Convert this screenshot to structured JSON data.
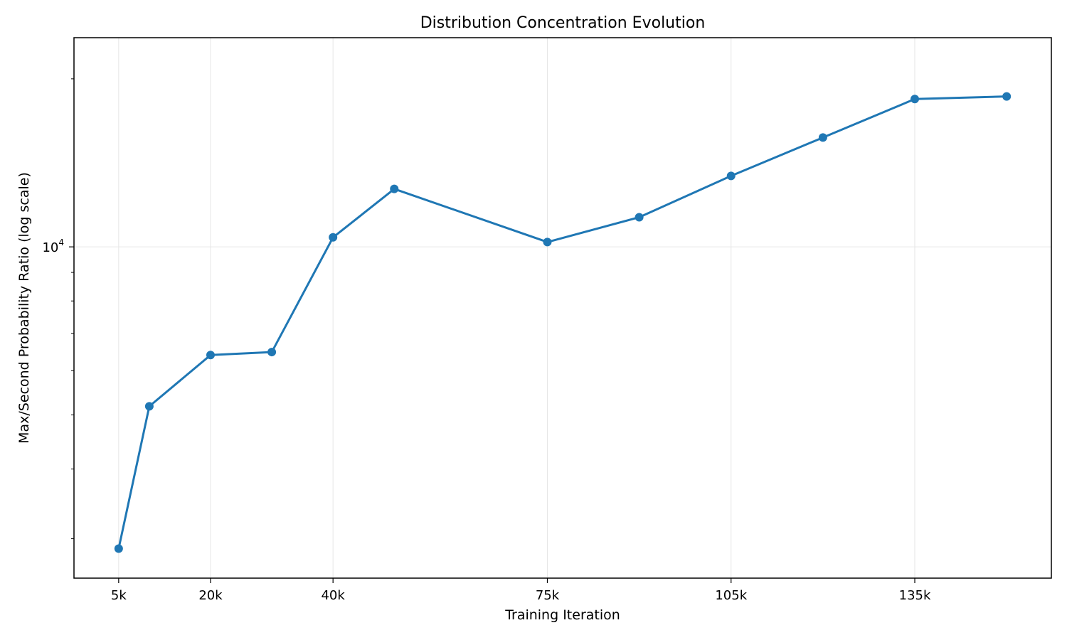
{
  "chart_data": {
    "type": "line",
    "title": "Distribution Concentration Evolution",
    "xlabel": "Training Iteration",
    "ylabel": "Max/Second Probability Ratio (log scale)",
    "yscale": "log",
    "grid": true,
    "x_ticks": [
      {
        "value": 5000,
        "label": "5k"
      },
      {
        "value": 20000,
        "label": "20k"
      },
      {
        "value": 40000,
        "label": "40k"
      },
      {
        "value": 75000,
        "label": "75k"
      },
      {
        "value": 105000,
        "label": "105k"
      },
      {
        "value": 135000,
        "label": "135k"
      }
    ],
    "y_major_ticks": [
      {
        "value": 10000,
        "base": "10",
        "exponent": "4"
      }
    ],
    "y_minor_ticks": [
      3000,
      4000,
      5000,
      6000,
      7000,
      8000,
      9000,
      20000
    ],
    "xlim": [
      -2300,
      157300
    ],
    "ylim": [
      2550,
      23700
    ],
    "series": [
      {
        "color": "#1f77b4",
        "points": [
          {
            "x": 5000,
            "y": 2880
          },
          {
            "x": 10000,
            "y": 5180
          },
          {
            "x": 20000,
            "y": 6400
          },
          {
            "x": 30000,
            "y": 6480
          },
          {
            "x": 40000,
            "y": 10400
          },
          {
            "x": 50000,
            "y": 12700
          },
          {
            "x": 75000,
            "y": 10200
          },
          {
            "x": 90000,
            "y": 11300
          },
          {
            "x": 105000,
            "y": 13400
          },
          {
            "x": 120000,
            "y": 15700
          },
          {
            "x": 135000,
            "y": 18400
          },
          {
            "x": 150000,
            "y": 18600
          }
        ]
      }
    ]
  }
}
